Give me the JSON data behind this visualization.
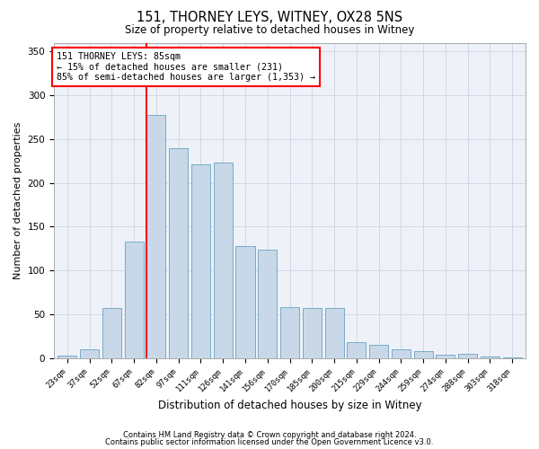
{
  "title1": "151, THORNEY LEYS, WITNEY, OX28 5NS",
  "title2": "Size of property relative to detached houses in Witney",
  "xlabel": "Distribution of detached houses by size in Witney",
  "ylabel": "Number of detached properties",
  "categories": [
    "23sqm",
    "37sqm",
    "52sqm",
    "67sqm",
    "82sqm",
    "97sqm",
    "111sqm",
    "126sqm",
    "141sqm",
    "156sqm",
    "170sqm",
    "185sqm",
    "200sqm",
    "215sqm",
    "229sqm",
    "244sqm",
    "259sqm",
    "274sqm",
    "288sqm",
    "303sqm",
    "318sqm"
  ],
  "values": [
    3,
    10,
    57,
    133,
    277,
    240,
    221,
    223,
    128,
    124,
    58,
    57,
    57,
    18,
    15,
    10,
    8,
    4,
    5,
    2,
    1
  ],
  "bar_color": "#c8d8e8",
  "bar_edge_color": "#7aaac8",
  "vline_color": "red",
  "vline_index": 4,
  "annotation_line1": "151 THORNEY LEYS: 85sqm",
  "annotation_line2": "← 15% of detached houses are smaller (231)",
  "annotation_line3": "85% of semi-detached houses are larger (1,353) →",
  "annotation_box_color": "white",
  "annotation_box_edge": "red",
  "ylim": [
    0,
    360
  ],
  "yticks": [
    0,
    50,
    100,
    150,
    200,
    250,
    300,
    350
  ],
  "grid_color": "#d0d8e8",
  "background_color": "#eef2f8",
  "footer1": "Contains HM Land Registry data © Crown copyright and database right 2024.",
  "footer2": "Contains public sector information licensed under the Open Government Licence v3.0."
}
